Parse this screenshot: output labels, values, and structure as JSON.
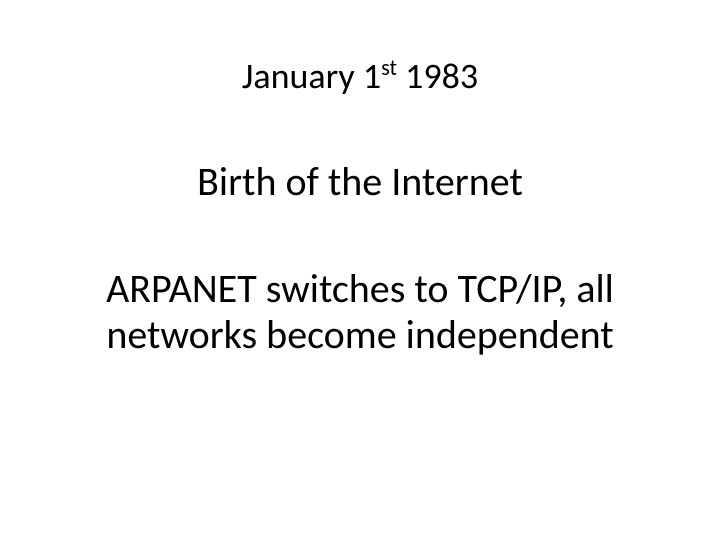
{
  "slide": {
    "background_color": "#ffffff",
    "text_color": "#000000",
    "font_family": "Calibri",
    "title": {
      "pre": "January 1",
      "sup": "st",
      "post": " 1983",
      "fontsize": 36,
      "weight": 400
    },
    "subtitle": {
      "text": "Birth of the Internet",
      "fontsize": 40,
      "weight": 400
    },
    "body": {
      "text": "ARPANET switches to TCP/IP, all networks become independent",
      "fontsize": 40,
      "weight": 400
    }
  }
}
